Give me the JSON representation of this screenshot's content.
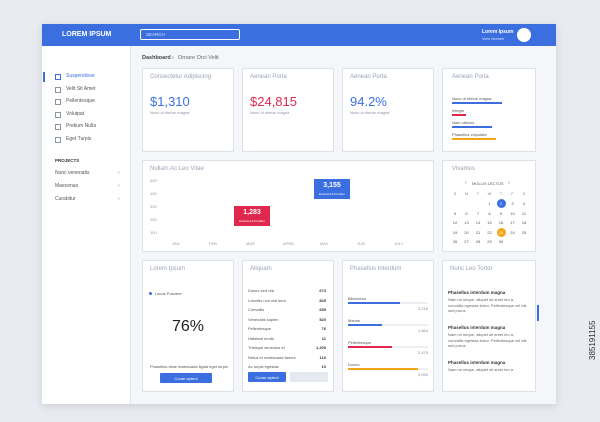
{
  "header": {
    "logo": "LOREM IPSUM",
    "search": "SEARCH",
    "user_name": "Lorem Ipsum",
    "user_role": "Vero Nomen"
  },
  "sidebar": {
    "items": [
      "Suspendisse",
      "Velit Sit Amet",
      "Pellentesque",
      "Volutpat",
      "Pretium Nulla",
      "Eget Turpis"
    ],
    "projects_title": "PROJECTS",
    "projects": [
      "Nunc venenatis",
      "Maecenas",
      "Curabitur"
    ]
  },
  "breadcrumb": {
    "root": "Dashboard",
    "current": "Ornare Orci Velit"
  },
  "stats": [
    {
      "title": "Consectetur Adipiscing",
      "value": "$1,310",
      "caption": "Nunc ut ritetue magna"
    },
    {
      "title": "Aenean Porta",
      "value": "$24,815",
      "caption": "Nunc ut ritetue magna"
    },
    {
      "title": "Aenean Porta",
      "value": "94.2%",
      "caption": "Nunc ut ritetue magna"
    }
  ],
  "progress_card": {
    "title": "Aenean Porta",
    "items": [
      "Nunc ut ritetue magna",
      "Integer",
      "Nam ultrices",
      "Phasellus vulputate"
    ]
  },
  "line_card": {
    "title": "Nullam Ac Leo Vitae",
    "months": [
      "JAN",
      "FEB",
      "MAR",
      "APRIL",
      "MAY",
      "JUN",
      "JULY"
    ],
    "yticks": [
      "500",
      "400",
      "300",
      "200",
      "100"
    ],
    "callouts": [
      {
        "value": "1,283",
        "caption": "Euismod & Porttitor"
      },
      {
        "value": "3,155",
        "caption": "Euismod & Porttitor"
      }
    ]
  },
  "calendar": {
    "title": "Vivamus",
    "month": "MOLLIS LECTUS",
    "weekdays": [
      "S",
      "M",
      "T",
      "W",
      "T",
      "F",
      "S"
    ],
    "days": [
      1,
      2,
      3,
      4,
      5,
      6,
      7,
      8,
      9,
      10,
      11,
      12,
      13,
      14,
      15,
      16,
      17,
      18,
      19,
      20,
      21,
      22,
      23,
      24,
      25,
      26,
      27,
      28,
      29,
      30
    ]
  },
  "donut_card": {
    "title": "Lorem Ipsum",
    "legend": "Lacus Posuere",
    "percent": {
      "value": 76,
      "label": "76%"
    },
    "text": "Phasellus vitae malesuada ligula eget turpis",
    "button": "Curae aptent"
  },
  "table_card": {
    "title": "Aliquam",
    "rows": [
      [
        "Donec sed nisi",
        "673"
      ],
      [
        "Lobortis non nisl sem",
        "825"
      ],
      [
        "Convallis",
        "659"
      ],
      [
        "Venenatis sapien",
        "520"
      ],
      [
        "Pellentesque",
        "76"
      ],
      [
        "Habitant morbi",
        "11"
      ],
      [
        "Tristique senectus et",
        "1,200"
      ],
      [
        "Netus et malesuada fames",
        "116"
      ],
      [
        "Ac turpis egestas",
        "10"
      ]
    ],
    "button": "Curae aptent"
  },
  "bars_card": {
    "title": "Phasellus Interdum",
    "bars": [
      {
        "label": "Bibendum",
        "value": "3,216"
      },
      {
        "label": "Mauris",
        "value": "1,864"
      },
      {
        "label": "Pellentesque",
        "value": "2,475"
      },
      {
        "label": "Donec",
        "value": "4,050"
      }
    ]
  },
  "news_card": {
    "title": "Nunc Leo Tortor",
    "items": [
      "Phasellus interdum magna",
      "Nam mi neque, aliquet sit amet leo a, convallis egestas tortor. Pellentesque vel elit sed purus",
      "Phasellus interdum magna",
      "Nam mi neque, aliquet sit amet leo a, convallis egestas tortor. Pellentesque vel elit sed purus",
      "Phasellus interdum magna",
      "Nam mi neque, aliquet sit amet leo a"
    ]
  },
  "watermark": "385191155"
}
